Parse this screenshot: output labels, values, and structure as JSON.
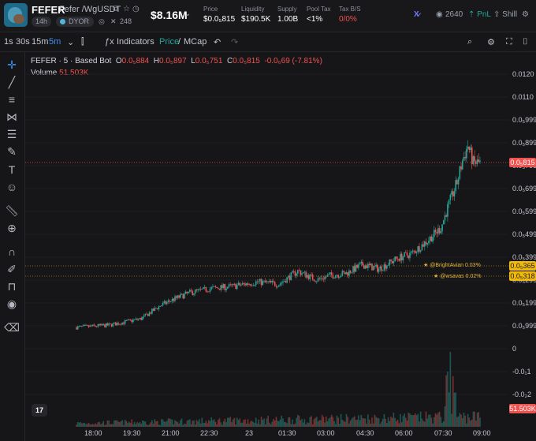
{
  "token": {
    "symbol": "FEFER",
    "pair": "Fefer /WgUSDT",
    "age": "14h",
    "dyor": "DYOR",
    "x_count": "248",
    "market_cap": "$8.16M"
  },
  "stats": [
    {
      "label": "Price",
      "value": "$0.0₅815"
    },
    {
      "label": "Liquidity",
      "value": "$190.5K"
    },
    {
      "label": "Supply",
      "value": "1.00B"
    },
    {
      "label": "Pool Tax",
      "value": "<1%"
    },
    {
      "label": "Tax B/S",
      "value": "0/0%"
    }
  ],
  "header_right": {
    "holders": "2640",
    "pnl": "PnL",
    "shill": "Shill"
  },
  "toolbar": {
    "intervals": [
      "1s",
      "30s",
      "15m",
      "5m"
    ],
    "active_interval": "5m",
    "indicators": "Indicators",
    "price": "Price",
    "sep": "/",
    "mcap": "MCap"
  },
  "legend": {
    "title": "FEFER · 5 · Based Bot",
    "o_label": "O",
    "o": "0.0₅884",
    "h_label": "H",
    "h": "0.0₅897",
    "l_label": "L",
    "l": "0.0₅751",
    "c_label": "C",
    "c": "0.0₅815",
    "change": "-0.0₆69 (-7.81%)",
    "volume_label": "Volume",
    "volume": "51.503K"
  },
  "price_axis": [
    "0.0120",
    "0.0110",
    "0.0₅999",
    "0.0₅899",
    "0.0₅799",
    "0.0₅699",
    "0.0₅599",
    "0.0₅499",
    "0.0₅399",
    "0.0₅299",
    "0.0₅199",
    "0.0₅999",
    "0",
    "-0.0₁1",
    "-0.0₂2"
  ],
  "price_labels": {
    "current": "0.0₅815",
    "bright": "0.0₅365",
    "wsavas": "0.0₅318",
    "volume": "51.503K"
  },
  "annotations": {
    "bright": "@BrightAvian 0.03%",
    "wsavas": "@wsavas 0.02%"
  },
  "time_axis": [
    "18:00",
    "19:30",
    "21:00",
    "22:30",
    "23",
    "01:30",
    "03:00",
    "04:30",
    "06:00",
    "07:30",
    "09:00"
  ],
  "colors": {
    "up": "#26a69a",
    "down": "#ef5350",
    "bg": "#161619"
  },
  "chart_data": {
    "type": "candlestick",
    "title": "FEFER · 5 · Based Bot",
    "ohlc_last": {
      "open": 8.84e-06,
      "high": 8.97e-06,
      "low": 7.51e-06,
      "close": 8.15e-06
    },
    "close_path": [
      [
        0,
        0.6
      ],
      [
        24,
        0.7
      ],
      [
        48,
        1.0
      ],
      [
        62,
        1.6
      ],
      [
        72,
        1.9
      ],
      [
        84,
        2.2
      ],
      [
        100,
        2.4
      ],
      [
        116,
        2.5
      ],
      [
        134,
        2.7
      ],
      [
        150,
        2.6
      ],
      [
        164,
        3.2
      ],
      [
        178,
        2.8
      ],
      [
        188,
        3.0
      ],
      [
        200,
        3.1
      ],
      [
        212,
        3.5
      ],
      [
        224,
        3.3
      ],
      [
        238,
        3.8
      ],
      [
        248,
        4.0
      ],
      [
        260,
        4.6
      ],
      [
        270,
        5.2
      ],
      [
        276,
        6.3
      ],
      [
        282,
        7.3
      ],
      [
        286,
        8.3
      ],
      [
        290,
        9.0
      ],
      [
        294,
        8.2
      ],
      [
        300,
        8.2
      ]
    ],
    "price_range": [
      -2.5,
      12.3
    ],
    "volume_scale": 10
  }
}
